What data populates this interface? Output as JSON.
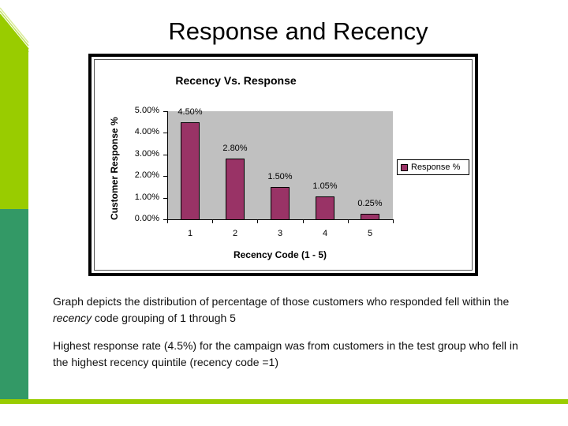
{
  "slide": {
    "title": "Response and Recency",
    "paragraph1": {
      "before": "Graph depicts the distribution of percentage of those customers who responded fell within the ",
      "emphasis": "recency",
      "after": " code grouping of 1 through 5"
    },
    "paragraph2": "Highest response rate (4.5%) for the campaign was from customers in the test group who fell in the highest recency quintile (recency code =1)"
  },
  "theme": {
    "sidebar_top": "#99cc00",
    "sidebar_bottom": "#339966",
    "bottom_bar": "#99cc00",
    "bar_color": "#993366",
    "plot_bg": "#c0c0c0"
  },
  "chart_data": {
    "type": "bar",
    "title": "Recency Vs. Response",
    "xlabel": "Recency Code (1 - 5)",
    "ylabel": "Customer Response %",
    "categories": [
      "1",
      "2",
      "3",
      "4",
      "5"
    ],
    "series": [
      {
        "name": "Response %",
        "values": [
          4.5,
          2.8,
          1.5,
          1.05,
          0.25
        ]
      }
    ],
    "data_labels": [
      "4.50%",
      "2.80%",
      "1.50%",
      "1.05%",
      "0.25%"
    ],
    "yticks": [
      "0.00%",
      "1.00%",
      "2.00%",
      "3.00%",
      "4.00%",
      "5.00%"
    ],
    "ylim": [
      0,
      5
    ],
    "grid": false,
    "legend": {
      "entries": [
        "Response %"
      ],
      "position": "right"
    }
  }
}
